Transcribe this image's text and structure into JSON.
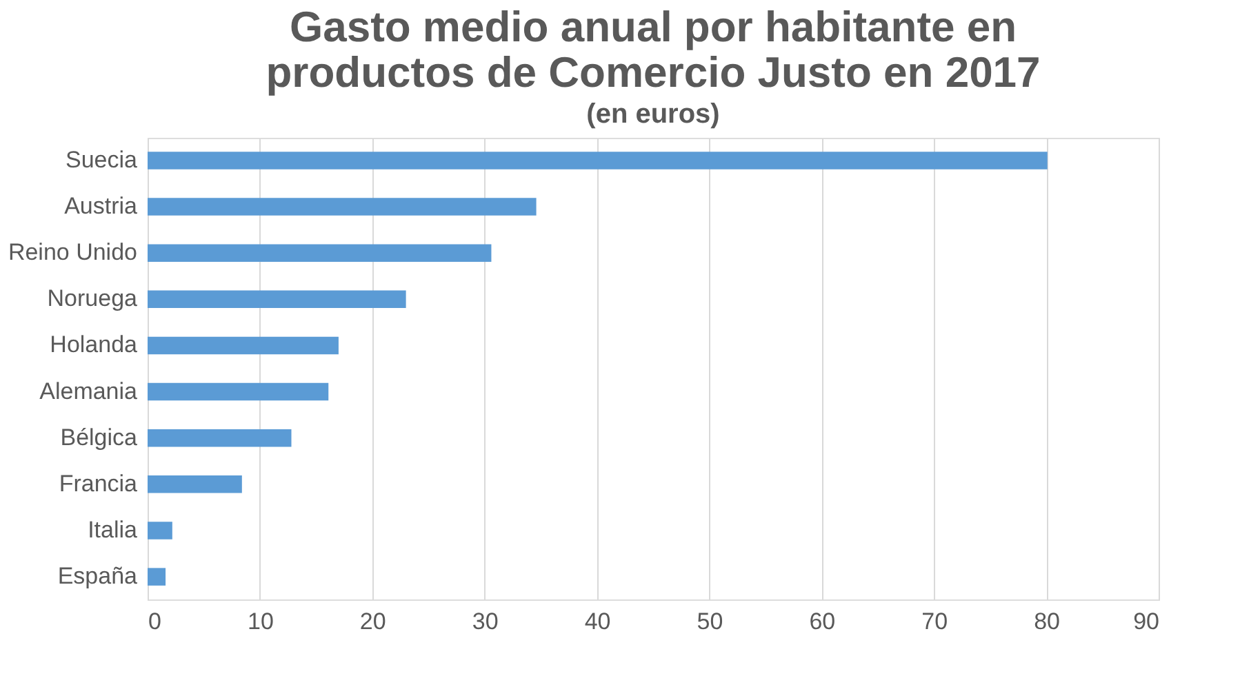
{
  "chart_data": {
    "type": "bar",
    "orientation": "horizontal",
    "title": [
      "Gasto medio anual por habitante en",
      "productos de Comercio Justo en 2017"
    ],
    "subtitle": "(en euros)",
    "categories": [
      "Suecia",
      "Austria",
      "Reino Unido",
      "Noruega",
      "Holanda",
      "Alemania",
      "Bélgica",
      "Francia",
      "Italia",
      "España"
    ],
    "values": [
      80.1,
      34.6,
      30.6,
      23.0,
      17.0,
      16.1,
      12.8,
      8.4,
      2.2,
      1.6
    ],
    "color": "#5b9bd5",
    "xlim": [
      0,
      90
    ],
    "xticks": [
      0,
      10,
      20,
      30,
      40,
      50,
      60,
      70,
      80,
      90
    ],
    "grid": "x"
  }
}
